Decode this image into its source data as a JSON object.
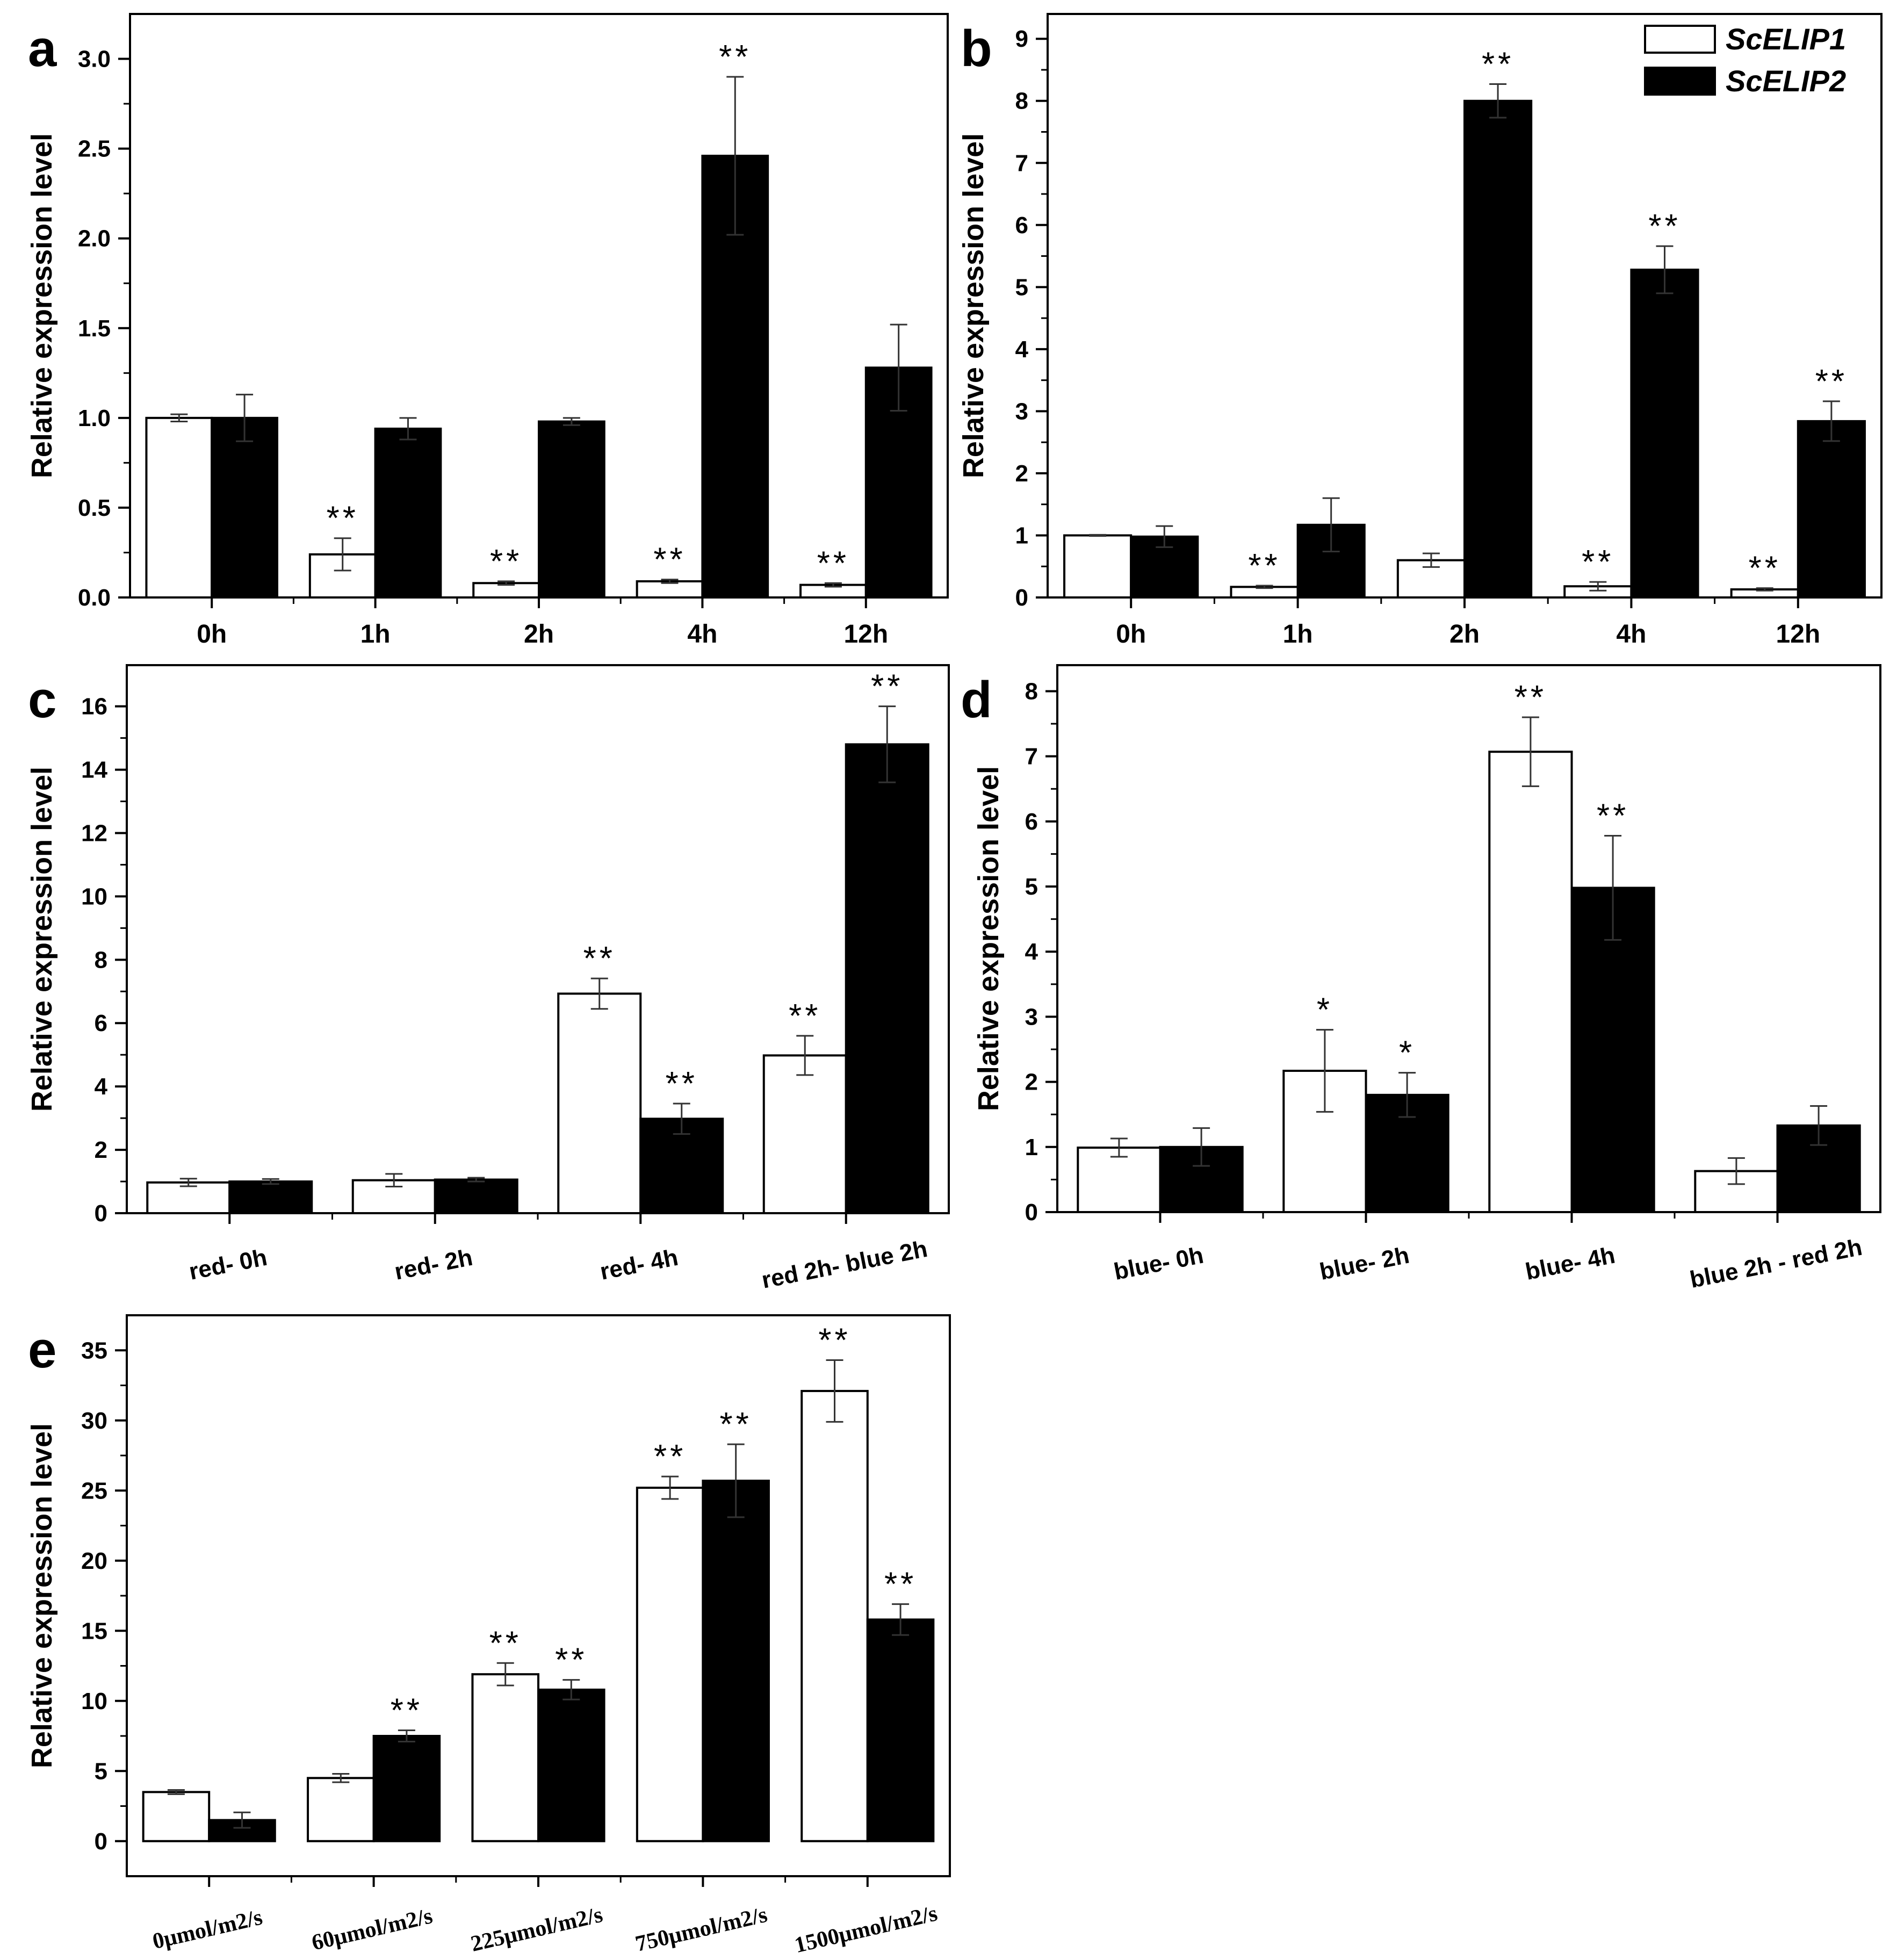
{
  "figure": {
    "legend": [
      {
        "name": "ScELIP1",
        "fill": "#ffffff"
      },
      {
        "name": "ScELIP2",
        "fill": "#000000"
      }
    ],
    "colors": {
      "scelip1": "#ffffff",
      "scelip2": "#000000",
      "axis": "#000000"
    }
  },
  "chart_data": [
    {
      "panel": "a",
      "type": "bar",
      "ylabel": "Relative expression level",
      "xlabel": "",
      "categories": [
        "0h",
        "1h",
        "2h",
        "4h",
        "12h"
      ],
      "ylim": [
        0,
        3.25
      ],
      "yticks": [
        0.0,
        0.5,
        1.0,
        1.5,
        2.0,
        2.5,
        3.0
      ],
      "ytick_labels": [
        "0.0",
        "0.5",
        "1.0",
        "1.5",
        "2.0",
        "2.5",
        "3.0"
      ],
      "series": [
        {
          "name": "ScELIP1",
          "values": [
            1.0,
            0.24,
            0.08,
            0.09,
            0.07
          ],
          "errors": [
            0.02,
            0.09,
            0.01,
            0.01,
            0.01
          ],
          "annotations": [
            "",
            "**",
            "**",
            "**",
            "**"
          ]
        },
        {
          "name": "ScELIP2",
          "values": [
            1.0,
            0.94,
            0.98,
            2.46,
            1.28
          ],
          "errors": [
            0.13,
            0.06,
            0.02,
            0.44,
            0.24
          ],
          "annotations": [
            "",
            "",
            "",
            "**",
            ""
          ]
        }
      ]
    },
    {
      "panel": "b",
      "type": "bar",
      "ylabel": "Relative expression level",
      "xlabel": "",
      "categories": [
        "0h",
        "1h",
        "2h",
        "4h",
        "12h"
      ],
      "ylim": [
        0,
        9.4
      ],
      "yticks": [
        0,
        1,
        2,
        3,
        4,
        5,
        6,
        7,
        8,
        9
      ],
      "ytick_labels": [
        "0",
        "1",
        "2",
        "3",
        "4",
        "5",
        "6",
        "7",
        "8",
        "9"
      ],
      "legend": "top-right",
      "series": [
        {
          "name": "ScELIP1",
          "values": [
            1.0,
            0.17,
            0.6,
            0.18,
            0.13
          ],
          "errors": [
            0.01,
            0.02,
            0.11,
            0.07,
            0.02
          ],
          "annotations": [
            "",
            "**",
            "",
            "**",
            "**"
          ]
        },
        {
          "name": "ScELIP2",
          "values": [
            0.98,
            1.17,
            8.0,
            5.28,
            2.84
          ],
          "errors": [
            0.17,
            0.43,
            0.27,
            0.38,
            0.32
          ],
          "annotations": [
            "",
            "",
            "**",
            "**",
            "**"
          ]
        }
      ]
    },
    {
      "panel": "c",
      "type": "bar",
      "ylabel": "Relative expression level",
      "xlabel": "",
      "categories": [
        "red- 0h",
        "red- 2h",
        "red- 4h",
        "red 2h- blue 2h"
      ],
      "ylim": [
        0,
        17.3
      ],
      "yticks": [
        0,
        2,
        4,
        6,
        8,
        10,
        12,
        14,
        16
      ],
      "ytick_labels": [
        "0",
        "2",
        "4",
        "6",
        "8",
        "10",
        "12",
        "14",
        "16"
      ],
      "series": [
        {
          "name": "ScELIP1",
          "values": [
            0.97,
            1.04,
            6.93,
            4.98
          ],
          "errors": [
            0.12,
            0.2,
            0.48,
            0.62
          ],
          "annotations": [
            "",
            "",
            "**",
            "**"
          ]
        },
        {
          "name": "ScELIP2",
          "values": [
            1.0,
            1.06,
            2.98,
            14.8
          ],
          "errors": [
            0.08,
            0.06,
            0.48,
            1.2
          ],
          "annotations": [
            "",
            "",
            "**",
            "**"
          ]
        }
      ]
    },
    {
      "panel": "d",
      "type": "bar",
      "ylabel": "Relative expression level",
      "xlabel": "",
      "categories": [
        "blue- 0h",
        "blue- 2h",
        "blue- 4h",
        "blue 2h - red 2h"
      ],
      "ylim": [
        0,
        8.4
      ],
      "yticks": [
        0,
        1,
        2,
        3,
        4,
        5,
        6,
        7,
        8
      ],
      "ytick_labels": [
        "0",
        "1",
        "2",
        "3",
        "4",
        "5",
        "6",
        "7",
        "8"
      ],
      "series": [
        {
          "name": "ScELIP1",
          "values": [
            0.99,
            2.17,
            7.07,
            0.63
          ],
          "errors": [
            0.14,
            0.63,
            0.53,
            0.2
          ],
          "annotations": [
            "",
            "*",
            "**",
            ""
          ]
        },
        {
          "name": "ScELIP2",
          "values": [
            1.0,
            1.8,
            4.98,
            1.33
          ],
          "errors": [
            0.29,
            0.34,
            0.8,
            0.3
          ],
          "annotations": [
            "",
            "*",
            "**",
            ""
          ]
        }
      ]
    },
    {
      "panel": "e",
      "type": "bar",
      "ylabel": "Relative expression level",
      "xlabel": "",
      "categories": [
        "0μmol/m2/s",
        "60μmol/m2/s",
        "225μmol/m2/s",
        "750μmol/m2/s",
        "1500μmol/m2/s"
      ],
      "ylim": [
        -2.5,
        37.5
      ],
      "yticks": [
        0,
        5,
        10,
        15,
        20,
        25,
        30,
        35
      ],
      "ytick_labels": [
        "0",
        "5",
        "10",
        "15",
        "20",
        "25",
        "30",
        "35"
      ],
      "series": [
        {
          "name": "ScELIP1",
          "values": [
            3.5,
            4.5,
            11.9,
            25.2,
            32.1
          ],
          "errors": [
            0.15,
            0.3,
            0.8,
            0.8,
            2.2
          ],
          "annotations": [
            "",
            "",
            "**",
            "**",
            "**"
          ]
        },
        {
          "name": "ScELIP2",
          "values": [
            1.5,
            7.5,
            10.8,
            25.7,
            15.8
          ],
          "errors": [
            0.55,
            0.4,
            0.7,
            2.6,
            1.1
          ],
          "annotations": [
            "",
            "**",
            "**",
            "**",
            "**"
          ]
        }
      ]
    }
  ]
}
